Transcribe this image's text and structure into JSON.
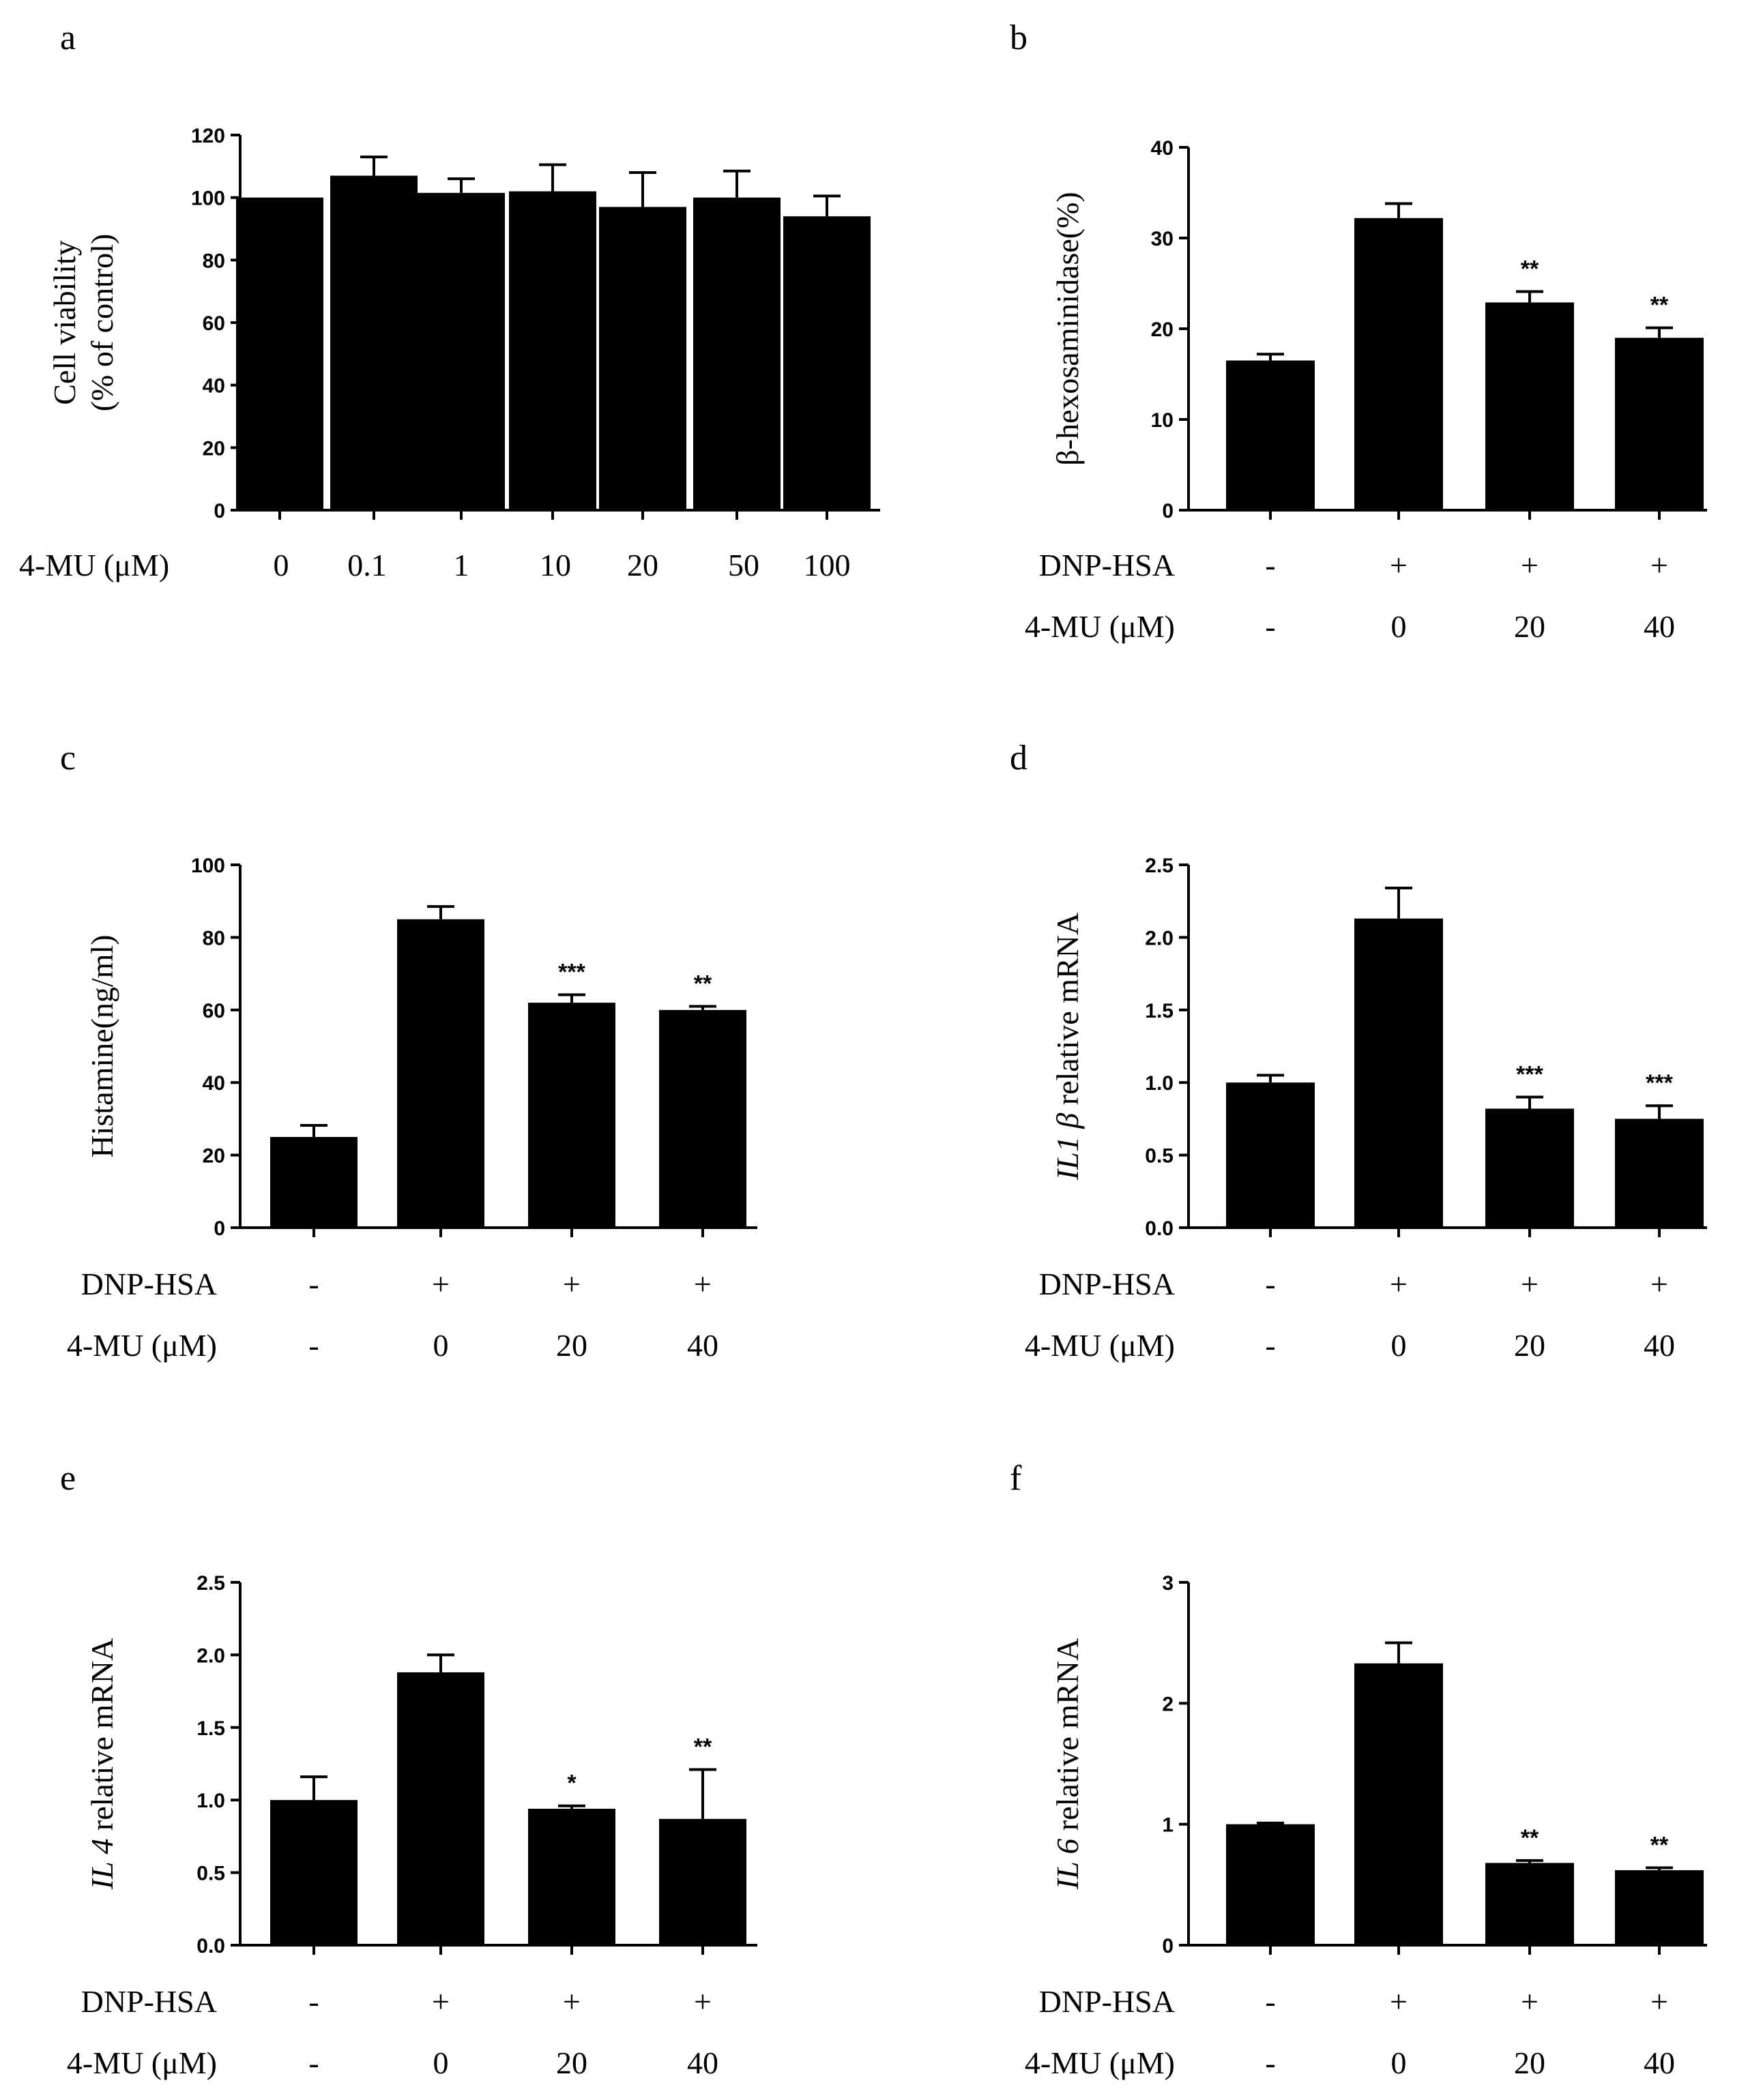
{
  "chart_data": [
    {
      "panel": "a",
      "type": "bar",
      "ylabel": [
        "Cell viability",
        "(% of control)"
      ],
      "ylim": [
        0,
        120
      ],
      "yticks": [
        0,
        20,
        40,
        60,
        80,
        100,
        120
      ],
      "ytick_labels": [
        "0",
        "20",
        "40",
        "60",
        "80",
        "100",
        "120"
      ],
      "row_labels": [
        "4-MU (μM)"
      ],
      "rows": [
        [
          "0",
          "0.1",
          "1",
          "10",
          "20",
          "50",
          "100"
        ]
      ],
      "values": [
        100,
        107,
        101.5,
        102,
        97,
        100,
        94
      ],
      "errors": [
        0,
        6,
        4.5,
        8.5,
        11,
        8.5,
        6.5
      ],
      "significance": [
        "",
        "",
        "",
        "",
        "",
        "",
        ""
      ]
    },
    {
      "panel": "b",
      "type": "bar",
      "ylabel": [
        "β-hexosaminidase(%)"
      ],
      "ylim": [
        0,
        40
      ],
      "yticks": [
        0,
        10,
        20,
        30,
        40
      ],
      "ytick_labels": [
        "0",
        "10",
        "20",
        "30",
        "40"
      ],
      "row_labels": [
        "DNP-HSA",
        "4-MU (μM)"
      ],
      "rows": [
        [
          "-",
          "+",
          "+",
          "+"
        ],
        [
          "-",
          "0",
          "20",
          "40"
        ]
      ],
      "values": [
        16.5,
        32.2,
        22.9,
        19
      ],
      "errors": [
        0.7,
        1.6,
        1.2,
        1.1
      ],
      "significance": [
        "",
        "",
        "**",
        "**"
      ]
    },
    {
      "panel": "c",
      "type": "bar",
      "ylabel": [
        "Histamine(ng/ml)"
      ],
      "ylim": [
        0,
        100
      ],
      "yticks": [
        0,
        20,
        40,
        60,
        80,
        100
      ],
      "ytick_labels": [
        "0",
        "20",
        "40",
        "60",
        "80",
        "100"
      ],
      "row_labels": [
        "DNP-HSA",
        "4-MU (μM)"
      ],
      "rows": [
        [
          "-",
          "+",
          "+",
          "+"
        ],
        [
          "-",
          "0",
          "20",
          "40"
        ]
      ],
      "values": [
        25,
        85,
        62,
        60
      ],
      "errors": [
        3.2,
        3.5,
        2.2,
        1.0
      ],
      "significance": [
        "",
        "",
        "***",
        "**"
      ]
    },
    {
      "panel": "d",
      "type": "bar",
      "ylabel": [
        "IL1 β",
        " relative mRNA"
      ],
      "ylim": [
        0,
        2.5
      ],
      "yticks": [
        0,
        0.5,
        1.0,
        1.5,
        2.0,
        2.5
      ],
      "ytick_labels": [
        "0.0",
        "0.5",
        "1.0",
        "1.5",
        "2.0",
        "2.5"
      ],
      "row_labels": [
        "DNP-HSA",
        "4-MU (μM)"
      ],
      "rows": [
        [
          "-",
          "+",
          "+",
          "+"
        ],
        [
          "-",
          "0",
          "20",
          "40"
        ]
      ],
      "values": [
        1.0,
        2.13,
        0.82,
        0.75
      ],
      "errors": [
        0.05,
        0.21,
        0.08,
        0.09
      ],
      "significance": [
        "",
        "",
        "***",
        "***"
      ]
    },
    {
      "panel": "e",
      "type": "bar",
      "ylabel": [
        "IL 4",
        " relative mRNA"
      ],
      "ylim": [
        0,
        2.5
      ],
      "yticks": [
        0,
        0.5,
        1.0,
        1.5,
        2.0,
        2.5
      ],
      "ytick_labels": [
        "0.0",
        "0.5",
        "1.0",
        "1.5",
        "2.0",
        "2.5"
      ],
      "row_labels": [
        "DNP-HSA",
        "4-MU (μM)"
      ],
      "rows": [
        [
          "-",
          "+",
          "+",
          "+"
        ],
        [
          "-",
          "0",
          "20",
          "40"
        ]
      ],
      "values": [
        1.0,
        1.88,
        0.94,
        0.87
      ],
      "errors": [
        0.16,
        0.12,
        0.02,
        0.34
      ],
      "significance": [
        "",
        "",
        "*",
        "**"
      ]
    },
    {
      "panel": "f",
      "type": "bar",
      "ylabel": [
        "IL 6",
        " relative mRNA"
      ],
      "ylim": [
        0,
        3
      ],
      "yticks": [
        0,
        1,
        2,
        3
      ],
      "ytick_labels": [
        "0",
        "1",
        "2",
        "3"
      ],
      "row_labels": [
        "DNP-HSA",
        "4-MU (μM)"
      ],
      "rows": [
        [
          "-",
          "+",
          "+",
          "+"
        ],
        [
          "-",
          "0",
          "20",
          "40"
        ]
      ],
      "values": [
        1.0,
        2.33,
        0.68,
        0.62
      ],
      "errors": [
        0.01,
        0.17,
        0.02,
        0.02
      ],
      "significance": [
        "",
        "",
        "**",
        "**"
      ]
    }
  ]
}
